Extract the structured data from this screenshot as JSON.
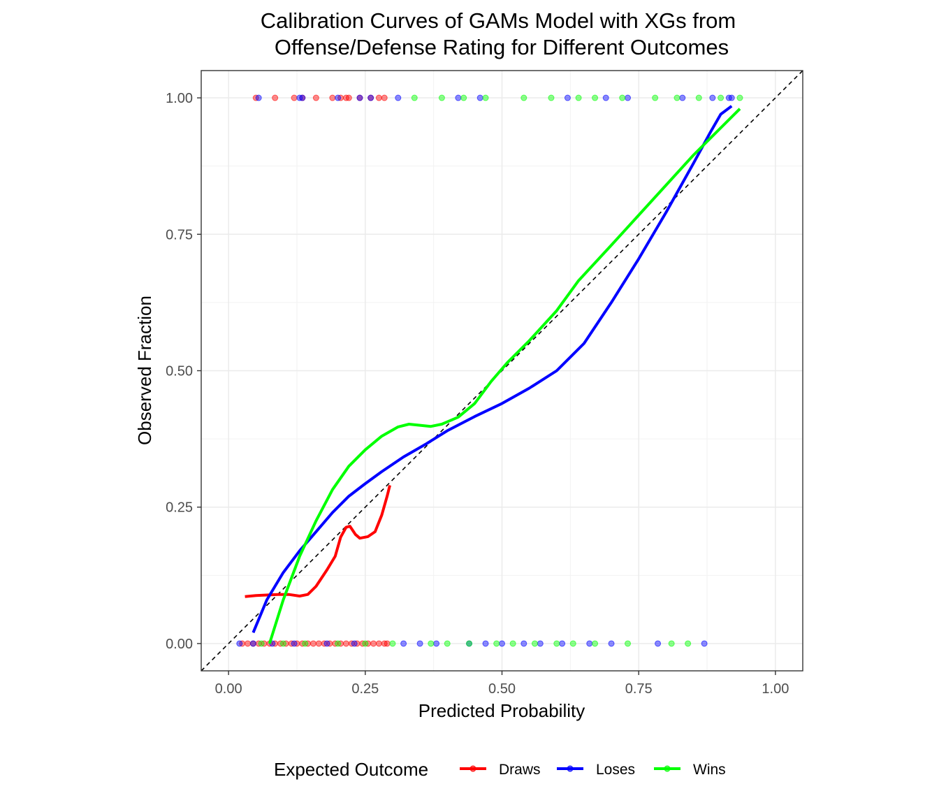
{
  "chart_data": {
    "type": "line",
    "title_lines": [
      "Calibration Curves of GAMs Model with XGs from",
      "Offense/Defense Rating for Different Outcomes"
    ],
    "xlabel": "Predicted Probability",
    "ylabel": "Observed Fraction",
    "xlim": [
      -0.05,
      1.05
    ],
    "ylim": [
      -0.05,
      1.05
    ],
    "x_ticks": [
      0,
      0.25,
      0.5,
      0.75,
      1
    ],
    "x_tick_labels": [
      "0.00",
      "0.25",
      "0.50",
      "0.75",
      "1.00"
    ],
    "y_ticks": [
      0,
      0.25,
      0.5,
      0.75,
      1
    ],
    "y_tick_labels": [
      "0.00",
      "0.25",
      "0.50",
      "0.75",
      "1.00"
    ],
    "grid": true,
    "reference_line": {
      "style": "dashed",
      "color": "#000000",
      "from": [
        -0.05,
        -0.05
      ],
      "to": [
        1.05,
        1.05
      ]
    },
    "legend": {
      "title": "Expected Outcome",
      "position": "bottom",
      "entries": [
        "Draws",
        "Loses",
        "Wins"
      ]
    },
    "series": [
      {
        "name": "Draws",
        "color": "#ff0000",
        "curve": [
          [
            0.03,
            0.086
          ],
          [
            0.05,
            0.088
          ],
          [
            0.07,
            0.089
          ],
          [
            0.09,
            0.09
          ],
          [
            0.11,
            0.09
          ],
          [
            0.13,
            0.087
          ],
          [
            0.145,
            0.09
          ],
          [
            0.16,
            0.105
          ],
          [
            0.18,
            0.135
          ],
          [
            0.195,
            0.16
          ],
          [
            0.205,
            0.195
          ],
          [
            0.215,
            0.213
          ],
          [
            0.222,
            0.215
          ],
          [
            0.232,
            0.2
          ],
          [
            0.24,
            0.193
          ],
          [
            0.255,
            0.196
          ],
          [
            0.268,
            0.205
          ],
          [
            0.28,
            0.235
          ],
          [
            0.29,
            0.27
          ],
          [
            0.295,
            0.29
          ]
        ],
        "points_y0": [
          0.025,
          0.035,
          0.045,
          0.055,
          0.065,
          0.075,
          0.085,
          0.095,
          0.105,
          0.115,
          0.125,
          0.135,
          0.145,
          0.155,
          0.165,
          0.175,
          0.185,
          0.195,
          0.205,
          0.215,
          0.225,
          0.235,
          0.245,
          0.255,
          0.265,
          0.275,
          0.285,
          0.29
        ],
        "points_y1": [
          0.05,
          0.085,
          0.12,
          0.135,
          0.16,
          0.19,
          0.205,
          0.215,
          0.22,
          0.24,
          0.26,
          0.275,
          0.285
        ]
      },
      {
        "name": "Loses",
        "color": "#0000ff",
        "curve": [
          [
            0.045,
            0.02
          ],
          [
            0.07,
            0.08
          ],
          [
            0.1,
            0.13
          ],
          [
            0.13,
            0.17
          ],
          [
            0.16,
            0.205
          ],
          [
            0.19,
            0.24
          ],
          [
            0.22,
            0.27
          ],
          [
            0.25,
            0.293
          ],
          [
            0.28,
            0.315
          ],
          [
            0.32,
            0.342
          ],
          [
            0.36,
            0.365
          ],
          [
            0.4,
            0.39
          ],
          [
            0.45,
            0.416
          ],
          [
            0.5,
            0.44
          ],
          [
            0.55,
            0.468
          ],
          [
            0.6,
            0.5
          ],
          [
            0.65,
            0.55
          ],
          [
            0.7,
            0.625
          ],
          [
            0.75,
            0.705
          ],
          [
            0.8,
            0.79
          ],
          [
            0.85,
            0.88
          ],
          [
            0.88,
            0.935
          ],
          [
            0.9,
            0.97
          ],
          [
            0.92,
            0.985
          ]
        ],
        "points_y0": [
          0.02,
          0.045,
          0.08,
          0.12,
          0.18,
          0.23,
          0.32,
          0.35,
          0.38,
          0.44,
          0.47,
          0.5,
          0.54,
          0.57,
          0.61,
          0.66,
          0.7,
          0.785,
          0.87
        ],
        "points_y1": [
          0.055,
          0.13,
          0.135,
          0.2,
          0.24,
          0.26,
          0.31,
          0.42,
          0.46,
          0.62,
          0.69,
          0.73,
          0.83,
          0.885,
          0.915,
          0.92
        ]
      },
      {
        "name": "Wins",
        "color": "#00ff00",
        "curve": [
          [
            0.075,
            0.0
          ],
          [
            0.1,
            0.08
          ],
          [
            0.13,
            0.16
          ],
          [
            0.16,
            0.225
          ],
          [
            0.19,
            0.282
          ],
          [
            0.22,
            0.325
          ],
          [
            0.25,
            0.355
          ],
          [
            0.28,
            0.38
          ],
          [
            0.31,
            0.397
          ],
          [
            0.33,
            0.402
          ],
          [
            0.35,
            0.4
          ],
          [
            0.37,
            0.398
          ],
          [
            0.39,
            0.402
          ],
          [
            0.42,
            0.415
          ],
          [
            0.45,
            0.44
          ],
          [
            0.48,
            0.48
          ],
          [
            0.51,
            0.515
          ],
          [
            0.55,
            0.555
          ],
          [
            0.6,
            0.61
          ],
          [
            0.64,
            0.665
          ],
          [
            0.7,
            0.73
          ],
          [
            0.75,
            0.785
          ],
          [
            0.8,
            0.84
          ],
          [
            0.85,
            0.895
          ],
          [
            0.9,
            0.945
          ],
          [
            0.935,
            0.98
          ]
        ],
        "points_y0": [
          0.06,
          0.1,
          0.14,
          0.2,
          0.25,
          0.3,
          0.37,
          0.4,
          0.44,
          0.49,
          0.52,
          0.56,
          0.6,
          0.63,
          0.67,
          0.73,
          0.81,
          0.84
        ],
        "points_y1": [
          0.34,
          0.39,
          0.43,
          0.47,
          0.54,
          0.59,
          0.64,
          0.67,
          0.72,
          0.78,
          0.82,
          0.86,
          0.9,
          0.935
        ]
      }
    ]
  }
}
